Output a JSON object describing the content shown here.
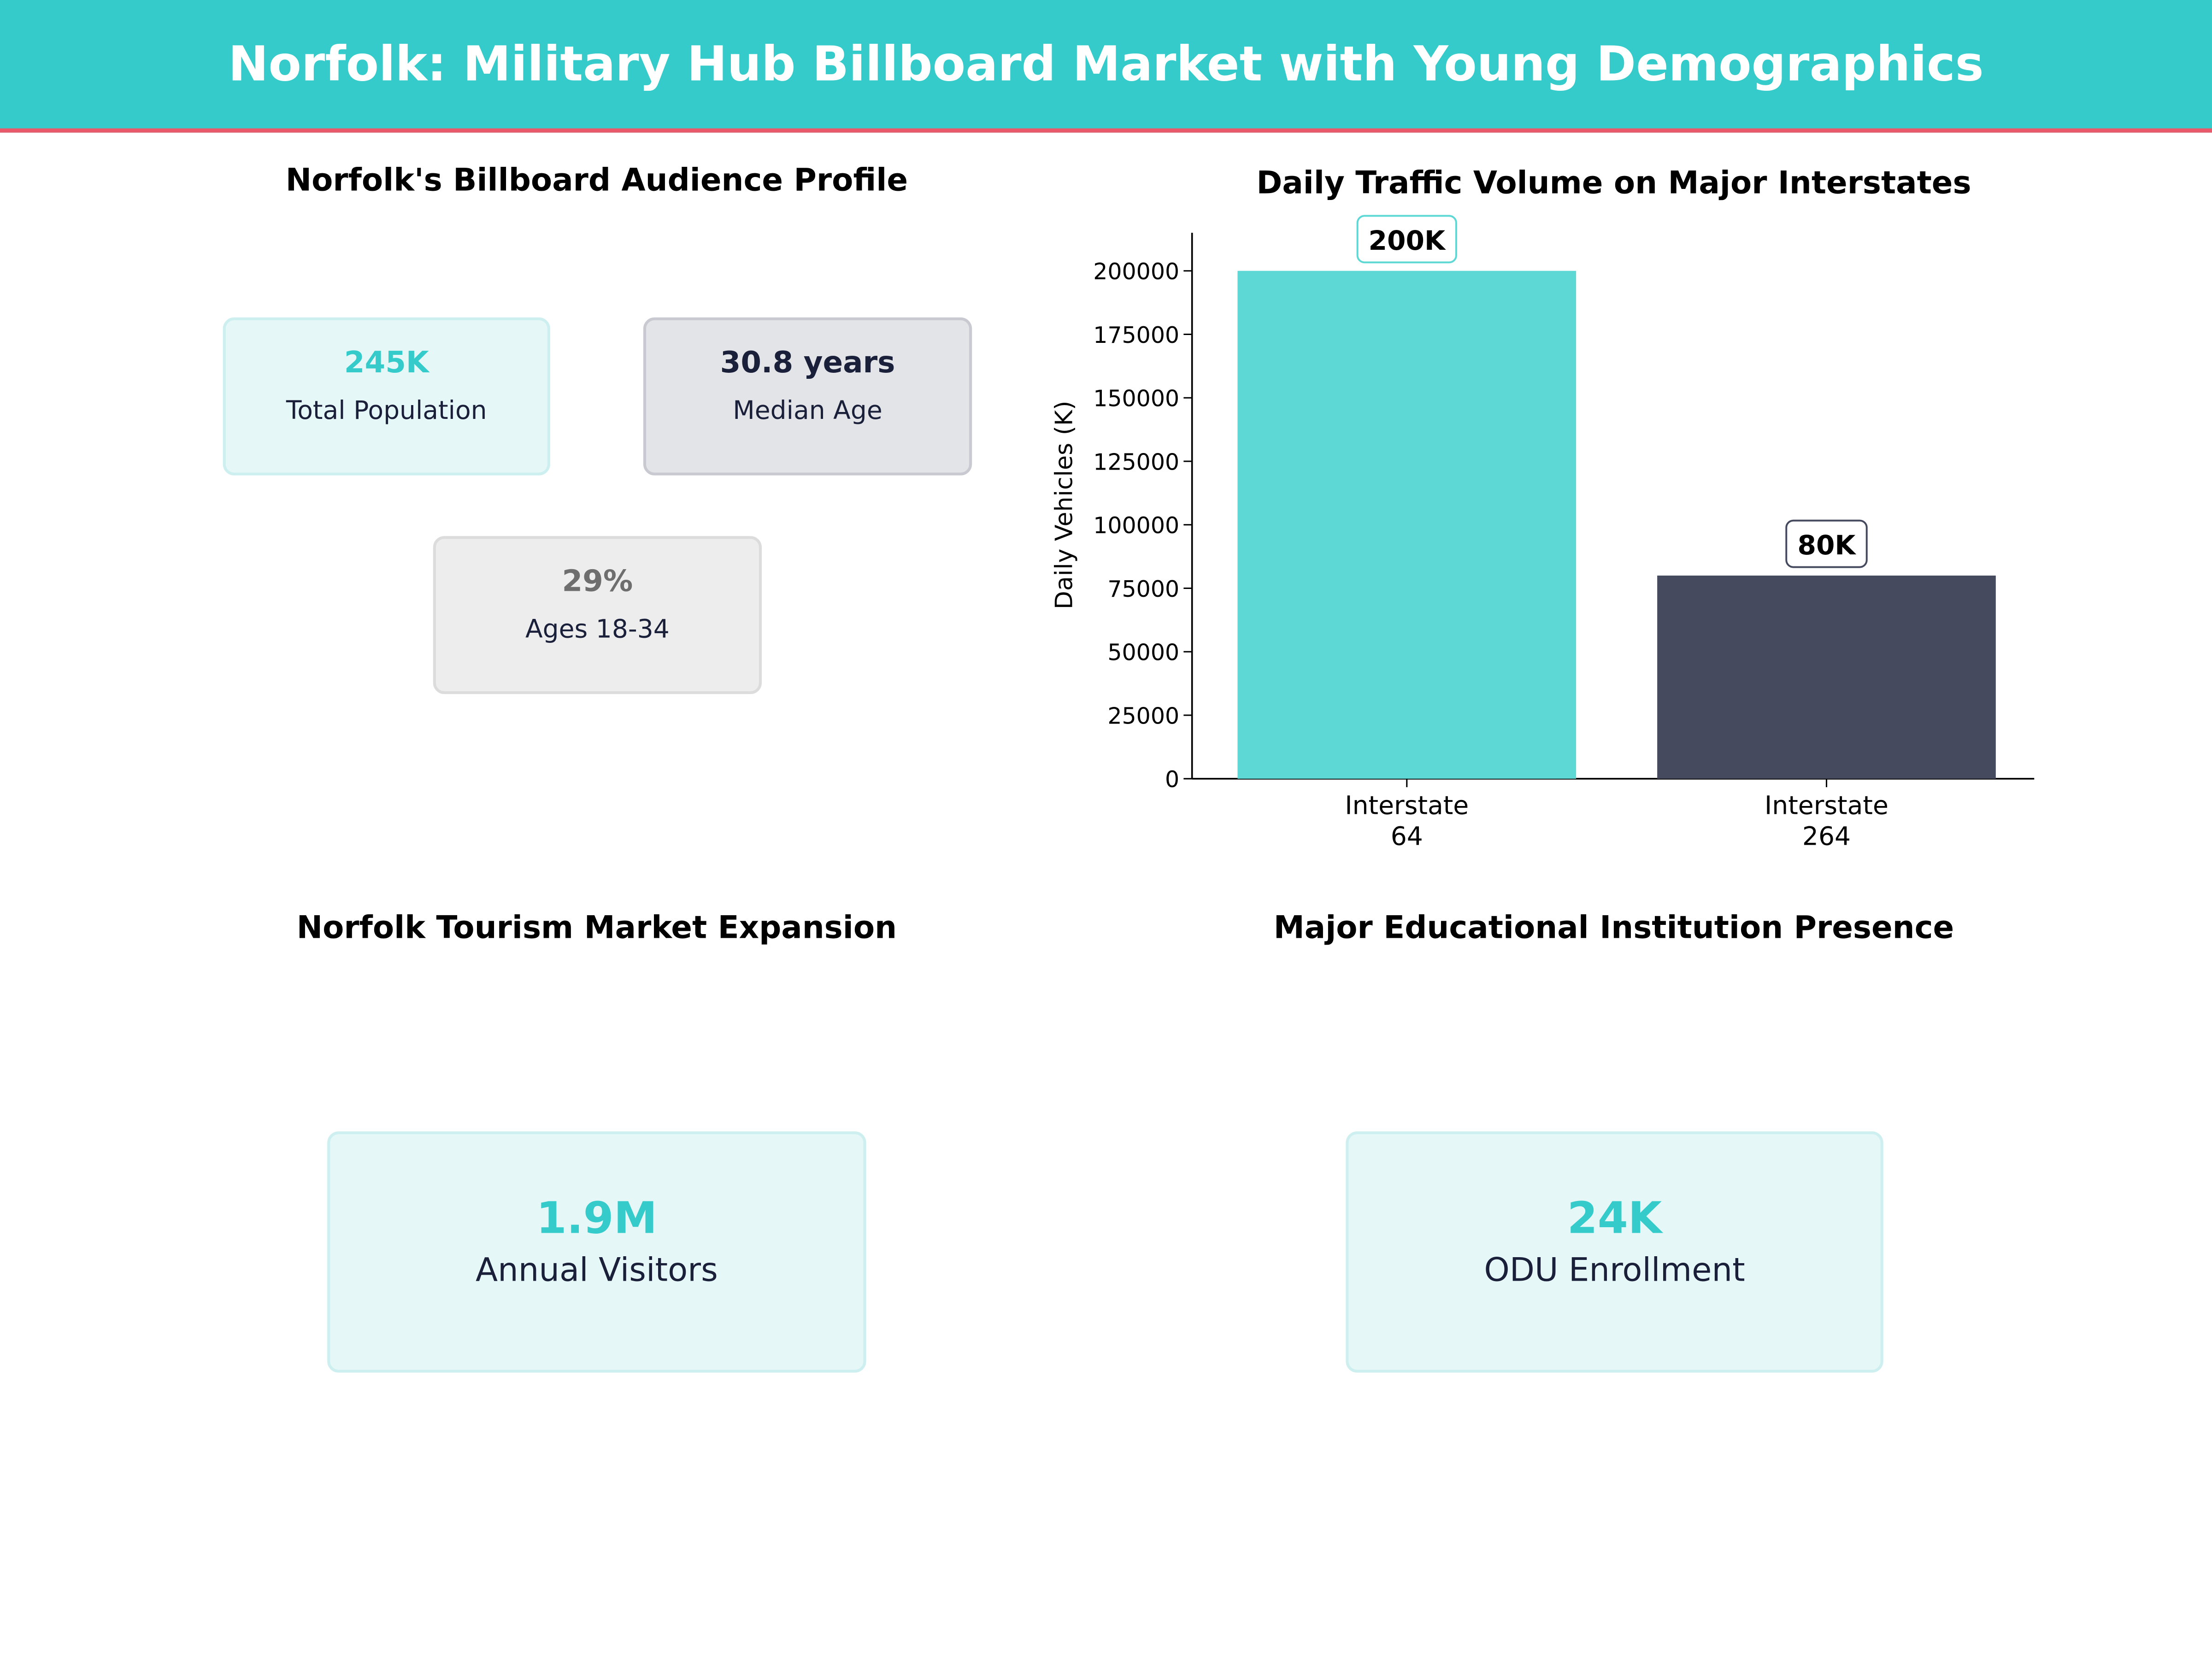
{
  "header": {
    "title": "Norfolk: Military Hub Billboard Market with Young Demographics"
  },
  "colors": {
    "header": "#36CBCB",
    "accent_line": "#E85A6A",
    "teal": "#36CBCB",
    "dark": "#1A1F3A",
    "grey_text": "#6E6E6E",
    "bar_i64": "#5DD8D5",
    "bar_i264": "#454A5F"
  },
  "audience": {
    "title": "Norfolk's Billboard Audience Profile",
    "cards": [
      {
        "value": "245K",
        "label": "Total Population"
      },
      {
        "value": "30.8 years",
        "label": "Median Age"
      },
      {
        "value": "29%",
        "label": "Ages 18-34"
      }
    ]
  },
  "tourism": {
    "title": "Norfolk Tourism Market Expansion",
    "value": "1.9M",
    "label": "Annual Visitors"
  },
  "education": {
    "title": "Major Educational Institution Presence",
    "value": "24K",
    "label": "ODU Enrollment"
  },
  "chart_data": {
    "type": "bar",
    "title": "Daily Traffic Volume on Major Interstates",
    "ylabel": "Daily Vehicles (K)",
    "xlabel": "",
    "categories": [
      "Interstate\n64",
      "Interstate\n264"
    ],
    "category_lines": [
      [
        "Interstate",
        "64"
      ],
      [
        "Interstate",
        "264"
      ]
    ],
    "values": [
      200000,
      80000
    ],
    "data_labels": [
      "200K",
      "80K"
    ],
    "colors": [
      "#5DD8D5",
      "#454A5F"
    ],
    "ylim": [
      0,
      215000
    ],
    "yticks": [
      0,
      25000,
      50000,
      75000,
      100000,
      125000,
      150000,
      175000,
      200000
    ],
    "grid": false
  }
}
